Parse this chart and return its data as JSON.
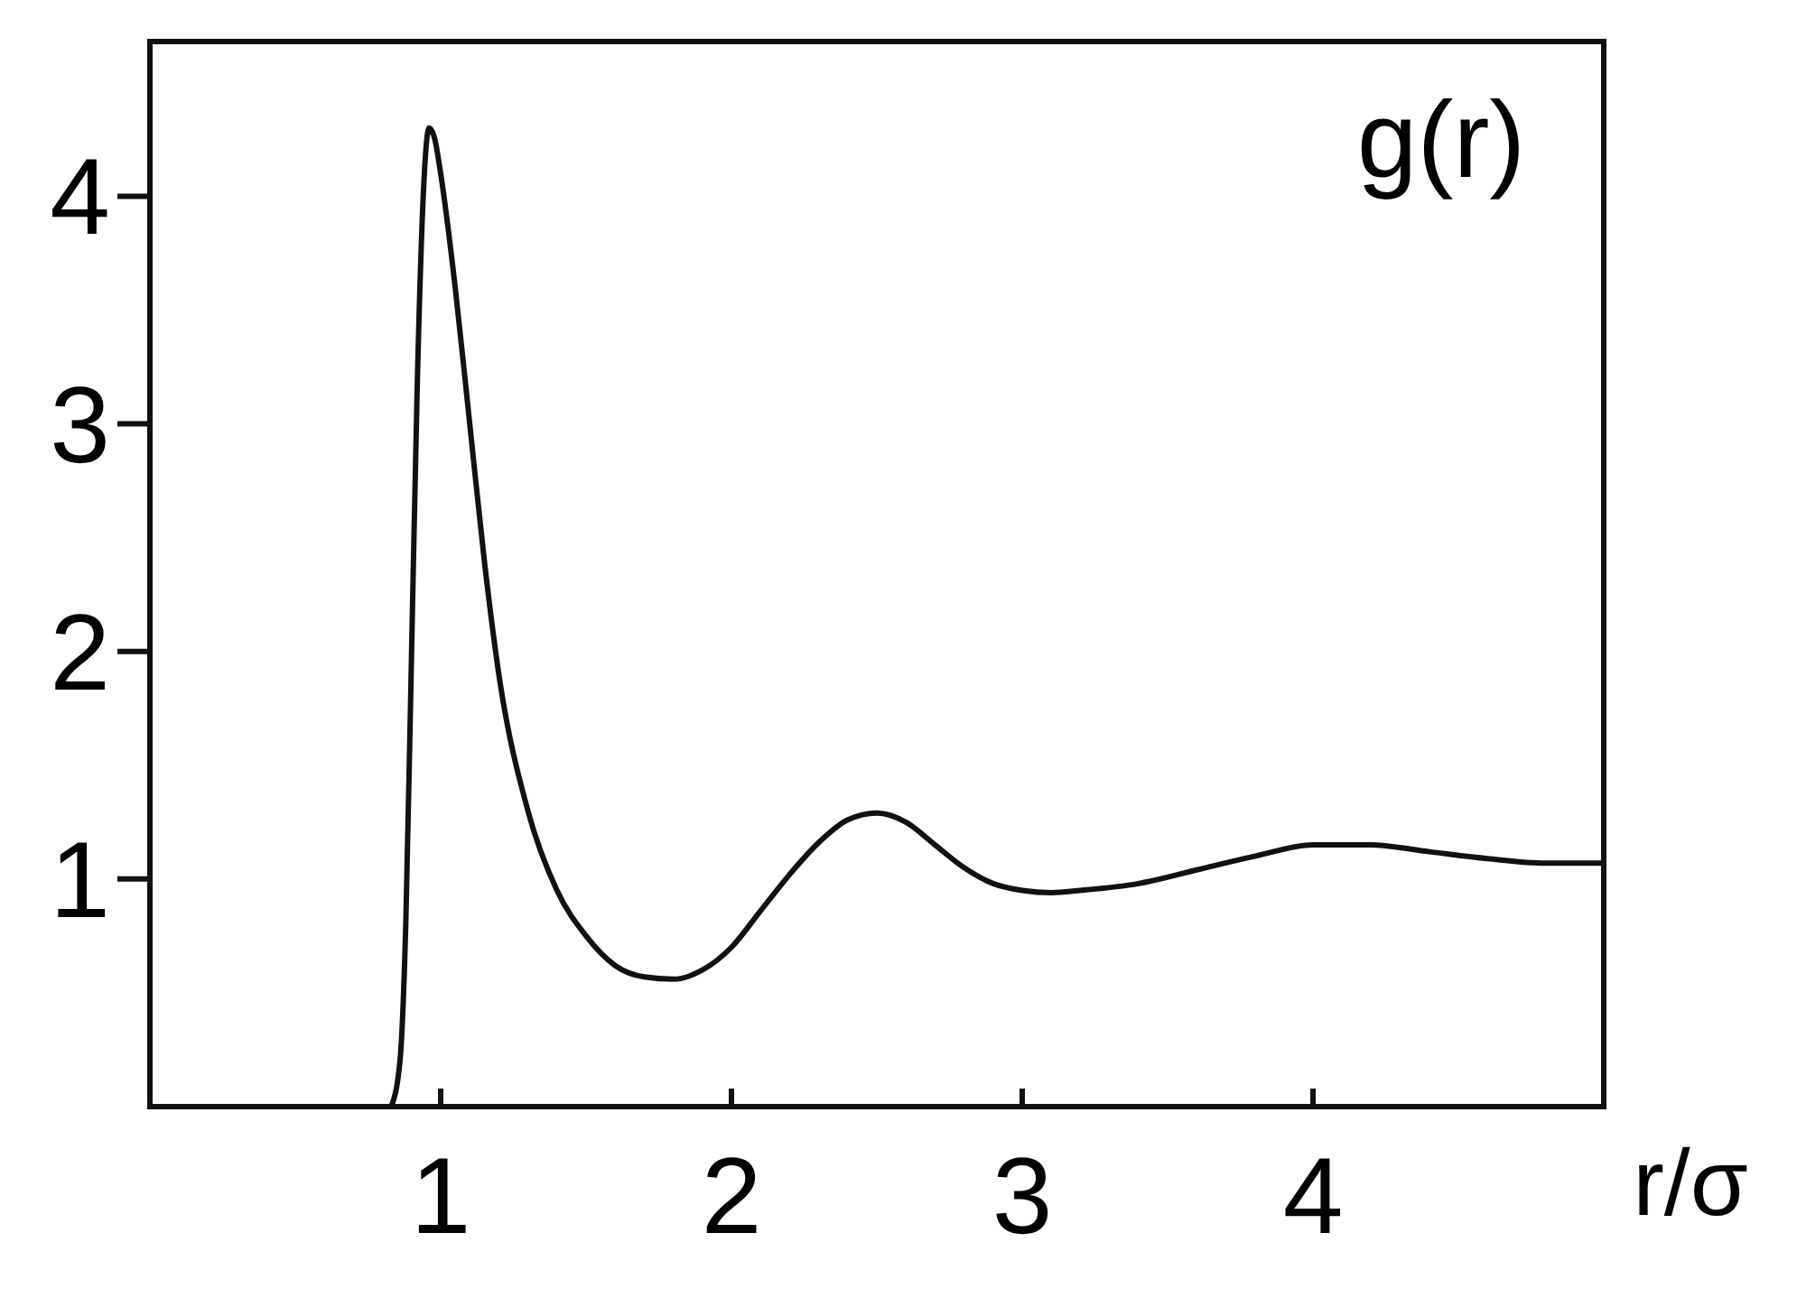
{
  "chart_data": {
    "type": "line",
    "xlabel": "r/σ",
    "ylabel": "g(r)",
    "xlim": [
      0,
      5
    ],
    "ylim": [
      0,
      4.68
    ],
    "xticks": [
      1,
      2,
      3,
      4
    ],
    "yticks": [
      1,
      2,
      3,
      4
    ],
    "grid": false,
    "marker": "none",
    "line_style": "solid",
    "series": [
      {
        "color": "#111111",
        "x": [
          0.83,
          0.86,
          0.88,
          0.9,
          0.92,
          0.94,
          0.96,
          0.98,
          1.0,
          1.05,
          1.1,
          1.15,
          1.2,
          1.3,
          1.4,
          1.5,
          1.6,
          1.7,
          1.8,
          1.9,
          2.0,
          2.1,
          2.2,
          2.3,
          2.4,
          2.5,
          2.6,
          2.7,
          2.8,
          2.9,
          3.0,
          3.1,
          3.2,
          3.4,
          3.6,
          3.8,
          4.0,
          4.2,
          4.4,
          4.6,
          4.8,
          5.0
        ],
        "values": [
          0,
          0.2,
          0.8,
          2.0,
          3.2,
          4.0,
          4.3,
          4.25,
          4.1,
          3.6,
          3.0,
          2.4,
          1.9,
          1.3,
          0.95,
          0.75,
          0.62,
          0.57,
          0.56,
          0.6,
          0.7,
          0.86,
          1.02,
          1.16,
          1.26,
          1.29,
          1.25,
          1.15,
          1.05,
          0.98,
          0.95,
          0.94,
          0.95,
          0.98,
          1.04,
          1.1,
          1.15,
          1.15,
          1.12,
          1.09,
          1.07,
          1.07
        ]
      }
    ]
  }
}
